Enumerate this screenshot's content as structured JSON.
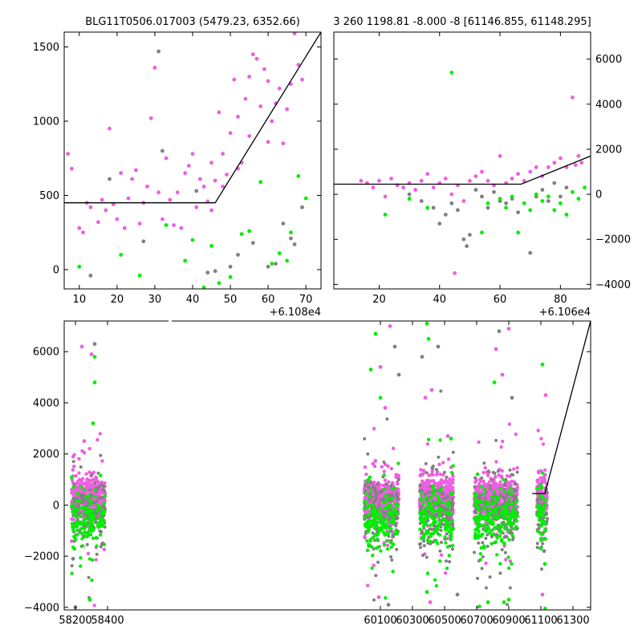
{
  "chart_data": [
    {
      "id": "top_left",
      "type": "scatter",
      "title": "BLG11T0506.017003 (5479.23, 6352.66)",
      "xlim": [
        6,
        74
      ],
      "ylim": [
        -130,
        1600
      ],
      "xticks": [
        10,
        20,
        30,
        40,
        50,
        60,
        70
      ],
      "yticks": [
        0,
        500,
        1000,
        1500
      ],
      "x_offset_label": "+6.108e4",
      "series": [
        {
          "color": "#ee5ee0",
          "points": [
            [
              7,
              780
            ],
            [
              8,
              680
            ],
            [
              10,
              280
            ],
            [
              11,
              250
            ],
            [
              12,
              450
            ],
            [
              13,
              420
            ],
            [
              15,
              320
            ],
            [
              16,
              470
            ],
            [
              17,
              400
            ],
            [
              18,
              950
            ],
            [
              19,
              440
            ],
            [
              20,
              340
            ],
            [
              21,
              650
            ],
            [
              22,
              280
            ],
            [
              23,
              480
            ],
            [
              24,
              610
            ],
            [
              25,
              670
            ],
            [
              26,
              310
            ],
            [
              27,
              450
            ],
            [
              28,
              560
            ],
            [
              29,
              1020
            ],
            [
              30,
              1360
            ],
            [
              31,
              520
            ],
            [
              32,
              340
            ],
            [
              33,
              750
            ],
            [
              34,
              470
            ],
            [
              35,
              300
            ],
            [
              36,
              520
            ],
            [
              37,
              280
            ],
            [
              38,
              650
            ],
            [
              39,
              700
            ],
            [
              40,
              780
            ],
            [
              41,
              420
            ],
            [
              42,
              610
            ],
            [
              43,
              560
            ],
            [
              44,
              460
            ],
            [
              45,
              720
            ],
            [
              46,
              600
            ],
            [
              47,
              1060
            ],
            [
              48,
              780
            ],
            [
              49,
              640
            ],
            [
              50,
              920
            ],
            [
              51,
              1280
            ],
            [
              52,
              1030
            ],
            [
              53,
              720
            ],
            [
              54,
              1150
            ],
            [
              55,
              1300
            ],
            [
              56,
              1450
            ],
            [
              57,
              1420
            ],
            [
              58,
              1100
            ],
            [
              59,
              1350
            ],
            [
              60,
              1270
            ],
            [
              61,
              1000
            ],
            [
              62,
              1120
            ],
            [
              63,
              1220
            ],
            [
              64,
              850
            ],
            [
              65,
              1080
            ],
            [
              66,
              1250
            ],
            [
              67,
              1590
            ],
            [
              68,
              1380
            ],
            [
              69,
              1280
            ],
            [
              60,
              860
            ],
            [
              52,
              680
            ],
            [
              48,
              560
            ],
            [
              45,
              400
            ],
            [
              55,
              900
            ]
          ]
        },
        {
          "color": "#808080",
          "points": [
            [
              13,
              -40
            ],
            [
              18,
              610
            ],
            [
              27,
              190
            ],
            [
              31,
              1470
            ],
            [
              32,
              800
            ],
            [
              36,
              -140
            ],
            [
              41,
              530
            ],
            [
              44,
              -20
            ],
            [
              46,
              -10
            ],
            [
              50,
              20
            ],
            [
              52,
              100
            ],
            [
              56,
              180
            ],
            [
              60,
              20
            ],
            [
              62,
              40
            ],
            [
              64,
              310
            ],
            [
              66,
              210
            ],
            [
              67,
              170
            ],
            [
              69,
              420
            ]
          ]
        },
        {
          "color": "#00ee00",
          "points": [
            [
              10,
              20
            ],
            [
              21,
              100
            ],
            [
              26,
              -40
            ],
            [
              33,
              300
            ],
            [
              38,
              60
            ],
            [
              40,
              200
            ],
            [
              43,
              -120
            ],
            [
              45,
              160
            ],
            [
              47,
              -90
            ],
            [
              50,
              -50
            ],
            [
              53,
              240
            ],
            [
              55,
              260
            ],
            [
              58,
              590
            ],
            [
              61,
              40
            ],
            [
              63,
              110
            ],
            [
              65,
              60
            ],
            [
              66,
              250
            ],
            [
              68,
              630
            ],
            [
              70,
              480
            ]
          ]
        }
      ],
      "lines": [
        [
          [
            6,
            450
          ],
          [
            46,
            450
          ],
          [
            74,
            1600
          ]
        ]
      ]
    },
    {
      "id": "top_right",
      "type": "scatter",
      "title": "3 260 1198.81 -8.000 -8 [61146.855, 61148.295]",
      "xlim": [
        5,
        90
      ],
      "ylim": [
        -4200,
        7200
      ],
      "xticks": [
        20,
        40,
        60,
        80
      ],
      "yticks": [
        -4000,
        -2000,
        0,
        2000,
        4000,
        6000
      ],
      "x_offset_label": "+6.106e4",
      "series": [
        {
          "color": "#ee5ee0",
          "points": [
            [
              14,
              600
            ],
            [
              16,
              500
            ],
            [
              18,
              300
            ],
            [
              20,
              600
            ],
            [
              22,
              -100
            ],
            [
              24,
              700
            ],
            [
              26,
              400
            ],
            [
              28,
              300
            ],
            [
              30,
              500
            ],
            [
              32,
              200
            ],
            [
              34,
              600
            ],
            [
              36,
              900
            ],
            [
              38,
              300
            ],
            [
              40,
              500
            ],
            [
              42,
              700
            ],
            [
              44,
              0
            ],
            [
              46,
              400
            ],
            [
              48,
              -300
            ],
            [
              50,
              600
            ],
            [
              52,
              800
            ],
            [
              54,
              1000
            ],
            [
              56,
              600
            ],
            [
              58,
              400
            ],
            [
              60,
              1700
            ],
            [
              62,
              500
            ],
            [
              64,
              700
            ],
            [
              66,
              900
            ],
            [
              68,
              600
            ],
            [
              70,
              1000
            ],
            [
              72,
              1200
            ],
            [
              74,
              800
            ],
            [
              76,
              1200
            ],
            [
              78,
              1400
            ],
            [
              80,
              1600
            ],
            [
              82,
              1200
            ],
            [
              84,
              4300
            ],
            [
              85,
              1300
            ],
            [
              86,
              1700
            ],
            [
              87,
              1400
            ],
            [
              45,
              -3500
            ]
          ]
        },
        {
          "color": "#808080",
          "points": [
            [
              30,
              0
            ],
            [
              34,
              -300
            ],
            [
              38,
              -600
            ],
            [
              40,
              -1300
            ],
            [
              42,
              -900
            ],
            [
              44,
              -400
            ],
            [
              46,
              -700
            ],
            [
              48,
              -2000
            ],
            [
              49,
              -2300
            ],
            [
              50,
              -1800
            ],
            [
              52,
              200
            ],
            [
              54,
              -100
            ],
            [
              56,
              -600
            ],
            [
              58,
              100
            ],
            [
              60,
              -300
            ],
            [
              62,
              -400
            ],
            [
              64,
              -200
            ],
            [
              66,
              -800
            ],
            [
              70,
              -2600
            ],
            [
              72,
              -100
            ],
            [
              74,
              200
            ],
            [
              76,
              -300
            ],
            [
              78,
              500
            ],
            [
              80,
              -100
            ],
            [
              82,
              300
            ]
          ]
        },
        {
          "color": "#00ee00",
          "points": [
            [
              22,
              -900
            ],
            [
              30,
              -200
            ],
            [
              36,
              -600
            ],
            [
              44,
              5400
            ],
            [
              54,
              -1700
            ],
            [
              56,
              -400
            ],
            [
              60,
              -200
            ],
            [
              62,
              -600
            ],
            [
              64,
              -100
            ],
            [
              66,
              -1700
            ],
            [
              68,
              -400
            ],
            [
              70,
              -700
            ],
            [
              72,
              0
            ],
            [
              74,
              -300
            ],
            [
              76,
              -100
            ],
            [
              78,
              -700
            ],
            [
              80,
              -400
            ],
            [
              82,
              -900
            ],
            [
              84,
              100
            ],
            [
              86,
              -200
            ],
            [
              88,
              300
            ]
          ]
        }
      ],
      "lines": [
        [
          [
            5,
            450
          ],
          [
            67,
            450
          ],
          [
            90,
            1700
          ]
        ]
      ]
    },
    {
      "id": "bottom",
      "type": "scatter",
      "xlim": [
        58130,
        61410
      ],
      "ylim": [
        -4100,
        7200
      ],
      "xticks": [
        58200,
        58400,
        60100,
        60300,
        60500,
        60700,
        60900,
        61100,
        61300
      ],
      "yticks": [
        -4000,
        -2000,
        0,
        2000,
        4000,
        6000
      ],
      "clusters": [
        {
          "x": [
            58175,
            58385
          ]
        },
        {
          "x": [
            60000,
            60215
          ]
        },
        {
          "x": [
            60345,
            60555
          ]
        },
        {
          "x": [
            60685,
            60955
          ]
        },
        {
          "x": [
            61075,
            61140
          ]
        }
      ],
      "series": [
        {
          "color": "#ee5ee0",
          "points": [
            [
              58240,
              6200
            ],
            [
              58300,
              5900
            ],
            [
              58255,
              2500
            ],
            [
              60100,
              5400
            ],
            [
              60160,
              7000
            ],
            [
              60130,
              3800
            ],
            [
              60380,
              4200
            ],
            [
              60420,
              4500
            ],
            [
              60520,
              2700
            ],
            [
              60820,
              6100
            ],
            [
              60860,
              5100
            ],
            [
              60900,
              6900
            ],
            [
              61130,
              4300
            ],
            [
              61110,
              -3500
            ],
            [
              60090,
              -3600
            ],
            [
              60410,
              -3800
            ]
          ]
        },
        {
          "color": "#808080",
          "points": [
            [
              58185,
              -2100
            ],
            [
              58320,
              6300
            ],
            [
              58370,
              -1500
            ],
            [
              60150,
              -3900
            ],
            [
              60190,
              6200
            ],
            [
              60215,
              5100
            ],
            [
              60360,
              5800
            ],
            [
              60460,
              6200
            ],
            [
              60580,
              -3500
            ],
            [
              60840,
              6800
            ],
            [
              60920,
              4200
            ],
            [
              61120,
              -1800
            ],
            [
              58200,
              -4000
            ]
          ]
        },
        {
          "color": "#00ee00",
          "points": [
            [
              58290,
              -3700
            ],
            [
              58310,
              3200
            ],
            [
              58320,
              4800
            ],
            [
              58320,
              5800
            ],
            [
              60070,
              6700
            ],
            [
              60040,
              5300
            ],
            [
              60100,
              4200
            ],
            [
              60390,
              7100
            ],
            [
              60400,
              6500
            ],
            [
              60390,
              -3400
            ],
            [
              60540,
              2600
            ],
            [
              60770,
              -3800
            ],
            [
              60810,
              4800
            ],
            [
              60870,
              -3800
            ],
            [
              61110,
              5500
            ],
            [
              61125,
              -2300
            ],
            [
              61100,
              -1700
            ],
            [
              60900,
              -3700
            ]
          ]
        }
      ],
      "lines": [
        [
          [
            61045,
            450
          ],
          [
            61125,
            450
          ],
          [
            61410,
            7200
          ]
        ]
      ]
    }
  ]
}
